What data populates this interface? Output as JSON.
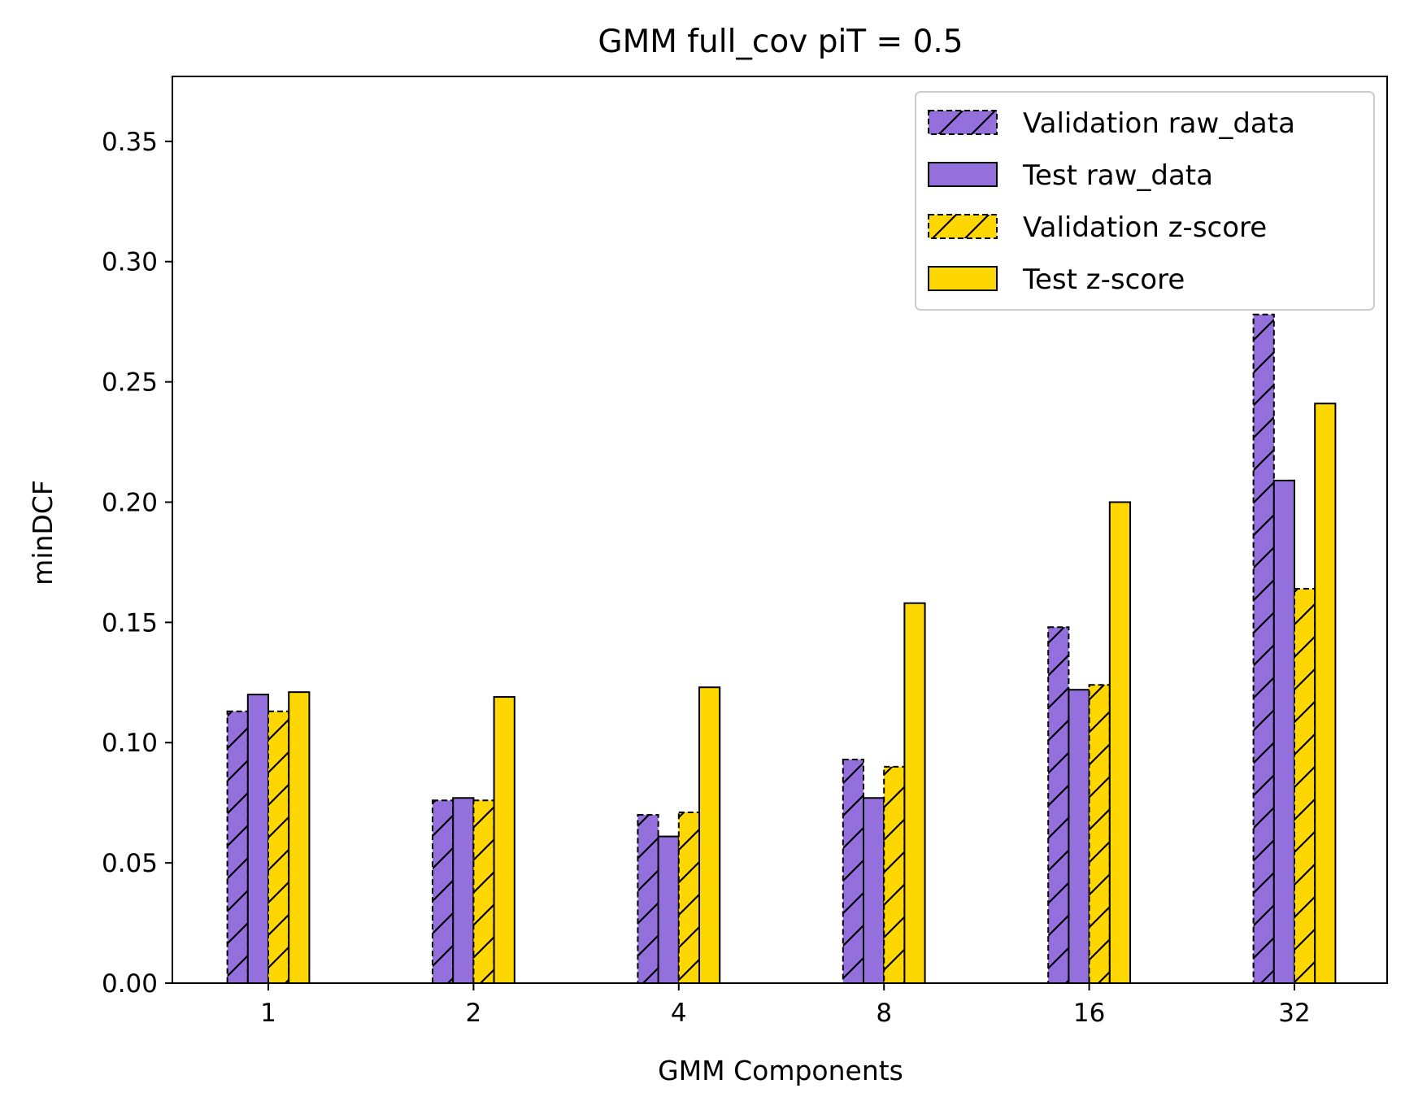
{
  "chart_data": {
    "type": "bar",
    "title": "GMM full_cov piT = 0.5",
    "xlabel": "GMM Components",
    "ylabel": "minDCF",
    "categories": [
      "1",
      "2",
      "4",
      "8",
      "16",
      "32"
    ],
    "ylim": [
      0,
      0.377
    ],
    "yticks": [
      0.0,
      0.05,
      0.1,
      0.15,
      0.2,
      0.25,
      0.3,
      0.35
    ],
    "ytick_labels": [
      "0.00",
      "0.05",
      "0.10",
      "0.15",
      "0.20",
      "0.25",
      "0.30",
      "0.35"
    ],
    "grid": false,
    "legend_position": "top-right",
    "series": [
      {
        "name": "Validation raw_data",
        "color": "#9370DB",
        "style": "dashed-hatched",
        "values": [
          0.113,
          0.076,
          0.07,
          0.093,
          0.148,
          0.278
        ]
      },
      {
        "name": "Test raw_data",
        "color": "#9370DB",
        "style": "solid",
        "values": [
          0.12,
          0.077,
          0.061,
          0.077,
          0.122,
          0.209
        ]
      },
      {
        "name": "Validation z-score",
        "color": "#FFD700",
        "style": "dashed-hatched",
        "values": [
          0.113,
          0.076,
          0.071,
          0.09,
          0.124,
          0.164
        ]
      },
      {
        "name": "Test z-score",
        "color": "#FFD700",
        "style": "solid",
        "values": [
          0.121,
          0.119,
          0.123,
          0.158,
          0.2,
          0.241
        ]
      }
    ]
  }
}
